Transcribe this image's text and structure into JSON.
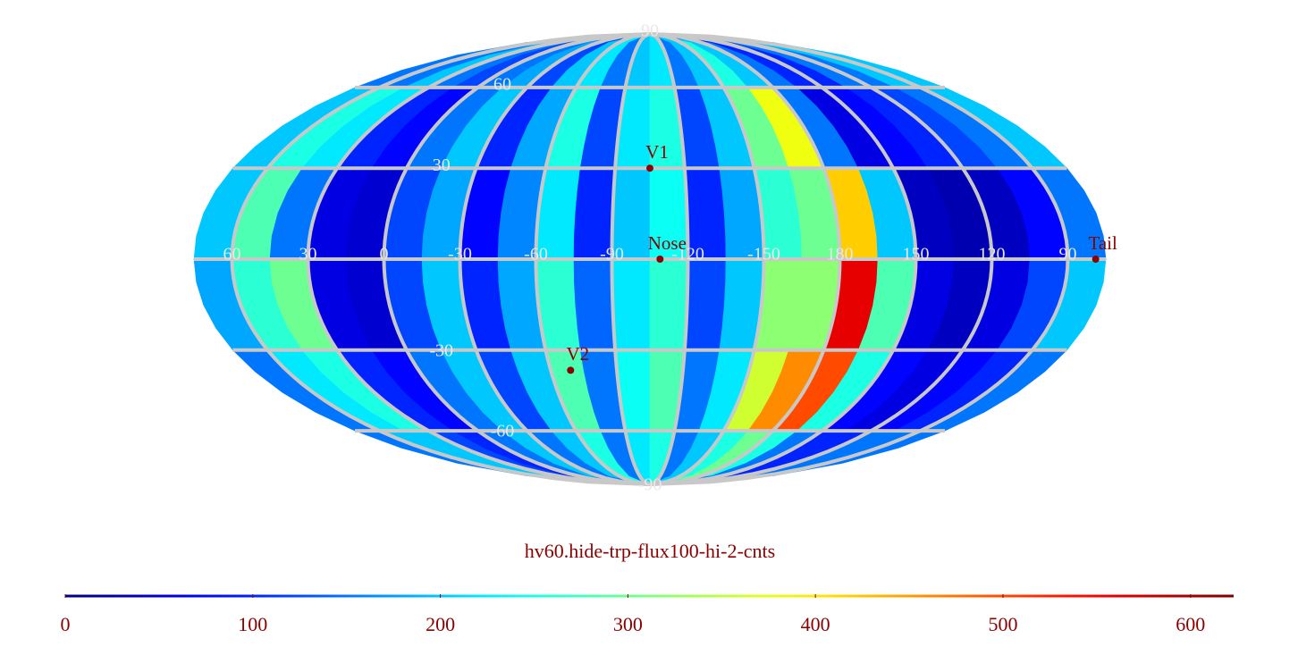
{
  "chart_data": {
    "type": "mollweide-heatmap",
    "title": "hv60.hide-trp-flux100-hi-2-cnts",
    "xlim": [
      75,
      -285
    ],
    "ylim": [
      -90,
      90
    ],
    "xbins": [
      75,
      60,
      45,
      30,
      15,
      0,
      -15,
      -30,
      -45,
      -60,
      -75,
      -90,
      -105,
      -120,
      -135,
      -150,
      -165,
      -180,
      -195,
      -210,
      -225,
      -240,
      -255,
      -270,
      -285
    ],
    "ybins": [
      90,
      60,
      30,
      0,
      -30,
      -60,
      -90
    ],
    "xticks": [
      60,
      30,
      0,
      -30,
      -60,
      -90,
      -120,
      -150,
      {
        "value": -180,
        "label": "180"
      },
      {
        "value": -210,
        "label": "150"
      },
      {
        "value": -240,
        "label": "120"
      },
      {
        "value": -270,
        "label": "90"
      }
    ],
    "yticks": [
      90,
      60,
      30,
      -30,
      -60,
      -90
    ],
    "grid": true,
    "grid_color": "#c8c8c8",
    "z": [
      [
        150,
        150,
        200,
        150,
        120,
        150,
        180,
        120,
        200,
        220,
        150,
        200,
        220,
        150,
        200,
        250,
        200,
        150,
        100,
        100,
        150,
        150,
        200,
        200
      ],
      [
        200,
        250,
        220,
        100,
        80,
        150,
        200,
        100,
        180,
        250,
        120,
        220,
        250,
        120,
        200,
        300,
        380,
        150,
        60,
        80,
        100,
        120,
        150,
        200
      ],
      [
        200,
        280,
        150,
        60,
        50,
        120,
        180,
        80,
        160,
        220,
        100,
        200,
        240,
        100,
        180,
        260,
        300,
        420,
        200,
        40,
        30,
        40,
        80,
        150
      ],
      [
        180,
        260,
        300,
        60,
        50,
        120,
        200,
        100,
        180,
        260,
        140,
        220,
        260,
        120,
        200,
        320,
        320,
        560,
        280,
        60,
        40,
        60,
        120,
        200
      ],
      [
        150,
        220,
        250,
        100,
        80,
        150,
        200,
        120,
        200,
        280,
        150,
        240,
        280,
        150,
        220,
        360,
        460,
        500,
        250,
        80,
        60,
        80,
        100,
        150
      ],
      [
        150,
        200,
        200,
        120,
        100,
        150,
        200,
        150,
        200,
        250,
        150,
        220,
        250,
        150,
        200,
        250,
        300,
        250,
        150,
        100,
        100,
        150,
        150,
        150
      ]
    ],
    "points": [
      {
        "label": "V1",
        "lon": -105,
        "lat": 30
      },
      {
        "label": "Nose",
        "lon": -109,
        "lat": 0
      },
      {
        "label": "Tail",
        "lon": -281,
        "lat": 0
      },
      {
        "label": "V2",
        "lon": -69,
        "lat": -37
      }
    ],
    "point_color": "#8b0000",
    "colorbar": {
      "lim": [
        0,
        623
      ],
      "ticks": [
        0,
        100,
        200,
        300,
        400,
        500,
        600
      ],
      "colormap": "jet"
    }
  }
}
